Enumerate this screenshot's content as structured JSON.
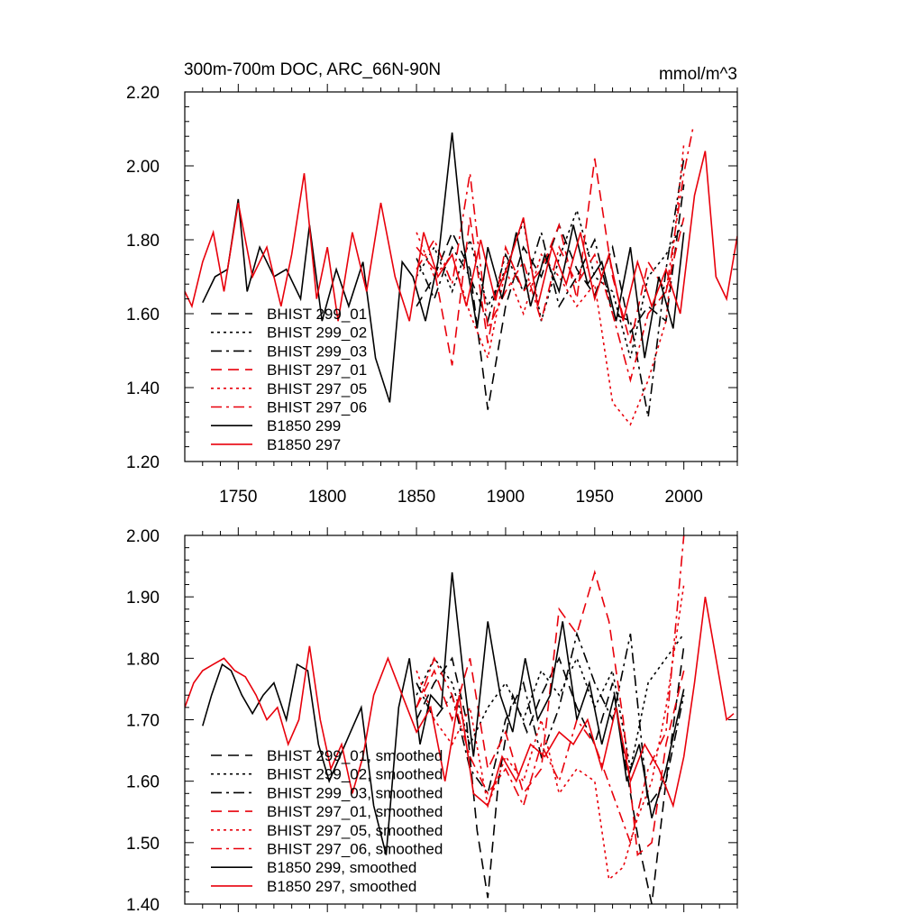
{
  "chart_data": [
    {
      "type": "line",
      "title": "300m-700m DOC, ARC_66N-90N",
      "units": "mmol/m^3",
      "xlim": [
        1720,
        2030
      ],
      "ylim": [
        1.2,
        2.2
      ],
      "x_ticks": [
        "1750",
        "1800",
        "1850",
        "1900",
        "1950",
        "2000"
      ],
      "y_ticks": [
        "1.20",
        "1.40",
        "1.60",
        "1.80",
        "2.00",
        "2.20"
      ],
      "legend_position": "lower-left",
      "series": [
        {
          "name": "BHIST 299_01",
          "color": "#000000",
          "dash": "dash",
          "x": [
            1850,
            1860,
            1870,
            1880,
            1890,
            1900,
            1910,
            1920,
            1930,
            1940,
            1950,
            1960,
            1970,
            1980,
            1990,
            2000
          ],
          "y": [
            1.62,
            1.7,
            1.82,
            1.72,
            1.34,
            1.62,
            1.78,
            1.7,
            1.84,
            1.72,
            1.65,
            1.78,
            1.55,
            1.62,
            1.58,
            1.95
          ]
        },
        {
          "name": "BHIST 299_02",
          "color": "#000000",
          "dash": "dot",
          "x": [
            1850,
            1860,
            1870,
            1880,
            1890,
            1900,
            1910,
            1920,
            1930,
            1940,
            1950,
            1960,
            1970,
            1980,
            1990,
            2000
          ],
          "y": [
            1.7,
            1.78,
            1.66,
            1.8,
            1.62,
            1.72,
            1.85,
            1.58,
            1.75,
            1.88,
            1.7,
            1.66,
            1.48,
            1.7,
            1.76,
            1.85
          ]
        },
        {
          "name": "BHIST 299_03",
          "color": "#000000",
          "dash": "dashdot",
          "x": [
            1850,
            1860,
            1870,
            1880,
            1890,
            1900,
            1910,
            1920,
            1930,
            1940,
            1950,
            1960,
            1970,
            1980,
            1990,
            2000
          ],
          "y": [
            1.75,
            1.64,
            1.78,
            1.7,
            1.58,
            1.76,
            1.66,
            1.82,
            1.62,
            1.7,
            1.8,
            1.6,
            1.58,
            1.32,
            1.72,
            2.02
          ]
        },
        {
          "name": "BHIST 297_01",
          "color": "#e8000b",
          "dash": "dash",
          "x": [
            1850,
            1860,
            1870,
            1880,
            1890,
            1900,
            1910,
            1920,
            1930,
            1940,
            1950,
            1960,
            1970,
            1980,
            1990,
            2000
          ],
          "y": [
            1.78,
            1.72,
            1.46,
            1.86,
            1.52,
            1.78,
            1.66,
            1.72,
            1.84,
            1.64,
            2.02,
            1.7,
            1.52,
            1.74,
            1.66,
            1.86
          ]
        },
        {
          "name": "BHIST 297_05",
          "color": "#e8000b",
          "dash": "dot",
          "x": [
            1850,
            1860,
            1870,
            1880,
            1890,
            1900,
            1910,
            1920,
            1930,
            1940,
            1950,
            1960,
            1970,
            1980,
            1990,
            2000
          ],
          "y": [
            1.82,
            1.7,
            1.76,
            1.6,
            1.48,
            1.72,
            1.6,
            1.76,
            1.7,
            1.62,
            1.68,
            1.36,
            1.3,
            1.42,
            1.58,
            2.06
          ]
        },
        {
          "name": "BHIST 297_06",
          "color": "#e8000b",
          "dash": "dashdot",
          "x": [
            1850,
            1860,
            1870,
            1880,
            1890,
            1900,
            1910,
            1920,
            1930,
            1940,
            1950,
            1960,
            1970,
            1980,
            1990,
            2000,
            2005
          ],
          "y": [
            1.72,
            1.8,
            1.68,
            1.98,
            1.56,
            1.66,
            1.74,
            1.58,
            1.78,
            1.68,
            1.76,
            1.6,
            1.42,
            1.6,
            1.66,
            1.98,
            2.1
          ]
        },
        {
          "name": "B1850 299",
          "color": "#000000",
          "dash": "solid",
          "x": [
            1730,
            1737,
            1744,
            1750,
            1755,
            1762,
            1770,
            1777,
            1785,
            1790,
            1797,
            1805,
            1812,
            1820,
            1827,
            1835,
            1842,
            1848,
            1855,
            1862,
            1870,
            1876,
            1884,
            1890,
            1898,
            1906,
            1914,
            1922,
            1930,
            1938,
            1946,
            1954,
            1962,
            1970,
            1978,
            1986,
            1994,
            2000
          ],
          "y": [
            1.63,
            1.7,
            1.72,
            1.91,
            1.66,
            1.78,
            1.7,
            1.72,
            1.64,
            1.84,
            1.58,
            1.72,
            1.62,
            1.74,
            1.48,
            1.36,
            1.74,
            1.7,
            1.58,
            1.74,
            2.09,
            1.8,
            1.56,
            1.78,
            1.64,
            1.82,
            1.62,
            1.76,
            1.66,
            1.84,
            1.68,
            1.74,
            1.58,
            1.78,
            1.48,
            1.7,
            1.56,
            1.82
          ]
        },
        {
          "name": "B1850 297",
          "color": "#e8000b",
          "dash": "solid",
          "x": [
            1720,
            1724,
            1730,
            1736,
            1742,
            1750,
            1758,
            1766,
            1774,
            1780,
            1787,
            1794,
            1800,
            1806,
            1814,
            1822,
            1830,
            1838,
            1846,
            1854,
            1862,
            1870,
            1878,
            1886,
            1894,
            1902,
            1910,
            1918,
            1926,
            1934,
            1942,
            1950,
            1958,
            1966,
            1974,
            1982,
            1990,
            1998,
            2006,
            2012,
            2018,
            2024,
            2030
          ],
          "y": [
            1.66,
            1.62,
            1.74,
            1.82,
            1.66,
            1.9,
            1.7,
            1.78,
            1.62,
            1.76,
            1.98,
            1.64,
            1.78,
            1.58,
            1.82,
            1.66,
            1.9,
            1.7,
            1.58,
            1.82,
            1.7,
            1.76,
            1.62,
            1.8,
            1.64,
            1.74,
            1.86,
            1.62,
            1.78,
            1.68,
            1.82,
            1.64,
            1.76,
            1.58,
            1.74,
            1.62,
            1.72,
            1.6,
            1.92,
            2.04,
            1.7,
            1.64,
            1.81
          ]
        }
      ]
    },
    {
      "type": "line",
      "xlim": [
        1720,
        2030
      ],
      "ylim": [
        1.4,
        2.0
      ],
      "y_ticks": [
        "1.40",
        "1.50",
        "1.60",
        "1.70",
        "1.80",
        "1.90",
        "2.00"
      ],
      "legend_position": "lower-left",
      "series": [
        {
          "name": "BHIST 299_01, smoothed",
          "color": "#000000",
          "dash": "dash",
          "x": [
            1850,
            1860,
            1870,
            1878,
            1884,
            1890,
            1896,
            1904,
            1912,
            1920,
            1930,
            1940,
            1950,
            1960,
            1970,
            1976,
            1982,
            1990,
            2000
          ],
          "y": [
            1.7,
            1.76,
            1.8,
            1.7,
            1.52,
            1.41,
            1.6,
            1.74,
            1.68,
            1.74,
            1.8,
            1.72,
            1.66,
            1.76,
            1.58,
            1.48,
            1.4,
            1.6,
            1.82
          ]
        },
        {
          "name": "BHIST 299_02, smoothed",
          "color": "#000000",
          "dash": "dot",
          "x": [
            1850,
            1860,
            1870,
            1880,
            1890,
            1900,
            1910,
            1920,
            1930,
            1940,
            1950,
            1960,
            1970,
            1980,
            1990,
            2000
          ],
          "y": [
            1.74,
            1.8,
            1.76,
            1.66,
            1.72,
            1.76,
            1.7,
            1.78,
            1.74,
            1.8,
            1.72,
            1.78,
            1.62,
            1.76,
            1.8,
            1.84
          ]
        },
        {
          "name": "BHIST 299_03, smoothed",
          "color": "#000000",
          "dash": "dashdot",
          "x": [
            1850,
            1860,
            1870,
            1880,
            1890,
            1900,
            1910,
            1920,
            1930,
            1940,
            1950,
            1960,
            1970,
            1980,
            1990,
            2000
          ],
          "y": [
            1.76,
            1.7,
            1.74,
            1.62,
            1.58,
            1.7,
            1.76,
            1.64,
            1.72,
            1.84,
            1.76,
            1.7,
            1.84,
            1.56,
            1.6,
            1.74
          ]
        },
        {
          "name": "BHIST 297_01, smoothed",
          "color": "#e8000b",
          "dash": "dash",
          "x": [
            1850,
            1860,
            1870,
            1880,
            1890,
            1900,
            1910,
            1920,
            1930,
            1940,
            1950,
            1958,
            1966,
            1974,
            1982,
            1990,
            2000
          ],
          "y": [
            1.72,
            1.78,
            1.7,
            1.8,
            1.62,
            1.68,
            1.58,
            1.62,
            1.88,
            1.84,
            1.94,
            1.86,
            1.7,
            1.48,
            1.5,
            1.66,
            1.78
          ]
        },
        {
          "name": "BHIST 297_05, smoothed",
          "color": "#e8000b",
          "dash": "dot",
          "x": [
            1850,
            1860,
            1870,
            1880,
            1890,
            1900,
            1910,
            1920,
            1930,
            1940,
            1950,
            1958,
            1966,
            1974,
            1982,
            1990,
            2000
          ],
          "y": [
            1.78,
            1.7,
            1.66,
            1.72,
            1.56,
            1.64,
            1.6,
            1.7,
            1.58,
            1.62,
            1.6,
            1.44,
            1.46,
            1.54,
            1.6,
            1.72,
            1.92
          ]
        },
        {
          "name": "BHIST 297_06, smoothed",
          "color": "#e8000b",
          "dash": "dashdot",
          "x": [
            1850,
            1860,
            1870,
            1880,
            1890,
            1900,
            1910,
            1920,
            1930,
            1940,
            1950,
            1960,
            1970,
            1980,
            1990,
            2000
          ],
          "y": [
            1.72,
            1.8,
            1.74,
            1.64,
            1.58,
            1.62,
            1.56,
            1.66,
            1.6,
            1.7,
            1.66,
            1.58,
            1.5,
            1.62,
            1.68,
            2.0
          ]
        },
        {
          "name": "B1850 299, smoothed",
          "color": "#000000",
          "dash": "solid",
          "x": [
            1730,
            1735,
            1741,
            1746,
            1752,
            1758,
            1764,
            1770,
            1777,
            1783,
            1789,
            1795,
            1801,
            1807,
            1813,
            1819,
            1826,
            1833,
            1840,
            1846,
            1852,
            1858,
            1864,
            1870,
            1876,
            1882,
            1890,
            1897,
            1904,
            1911,
            1918,
            1925,
            1932,
            1940,
            1947,
            1954,
            1961,
            1968,
            1975,
            1982,
            1990,
            2000
          ],
          "y": [
            1.69,
            1.74,
            1.79,
            1.78,
            1.74,
            1.71,
            1.74,
            1.76,
            1.7,
            1.79,
            1.78,
            1.66,
            1.6,
            1.64,
            1.68,
            1.72,
            1.56,
            1.48,
            1.72,
            1.8,
            1.66,
            1.74,
            1.72,
            1.94,
            1.78,
            1.64,
            1.86,
            1.74,
            1.68,
            1.8,
            1.7,
            1.74,
            1.86,
            1.7,
            1.76,
            1.66,
            1.74,
            1.6,
            1.66,
            1.54,
            1.62,
            1.75
          ]
        },
        {
          "name": "B1850 297, smoothed",
          "color": "#e8000b",
          "dash": "solid",
          "x": [
            1720,
            1725,
            1730,
            1736,
            1742,
            1748,
            1754,
            1760,
            1766,
            1772,
            1778,
            1784,
            1790,
            1796,
            1802,
            1808,
            1814,
            1820,
            1826,
            1834,
            1842,
            1850,
            1858,
            1866,
            1874,
            1882,
            1890,
            1898,
            1906,
            1914,
            1922,
            1930,
            1938,
            1946,
            1954,
            1962,
            1970,
            1978,
            1986,
            1994,
            2000,
            2006,
            2012,
            2018,
            2024,
            2028
          ],
          "y": [
            1.72,
            1.76,
            1.78,
            1.79,
            1.8,
            1.78,
            1.77,
            1.74,
            1.7,
            1.72,
            1.66,
            1.7,
            1.82,
            1.7,
            1.62,
            1.66,
            1.58,
            1.64,
            1.74,
            1.8,
            1.74,
            1.68,
            1.72,
            1.6,
            1.74,
            1.58,
            1.56,
            1.64,
            1.6,
            1.66,
            1.64,
            1.68,
            1.66,
            1.7,
            1.62,
            1.72,
            1.6,
            1.66,
            1.62,
            1.56,
            1.64,
            1.76,
            1.9,
            1.8,
            1.7,
            1.71
          ]
        }
      ]
    }
  ]
}
